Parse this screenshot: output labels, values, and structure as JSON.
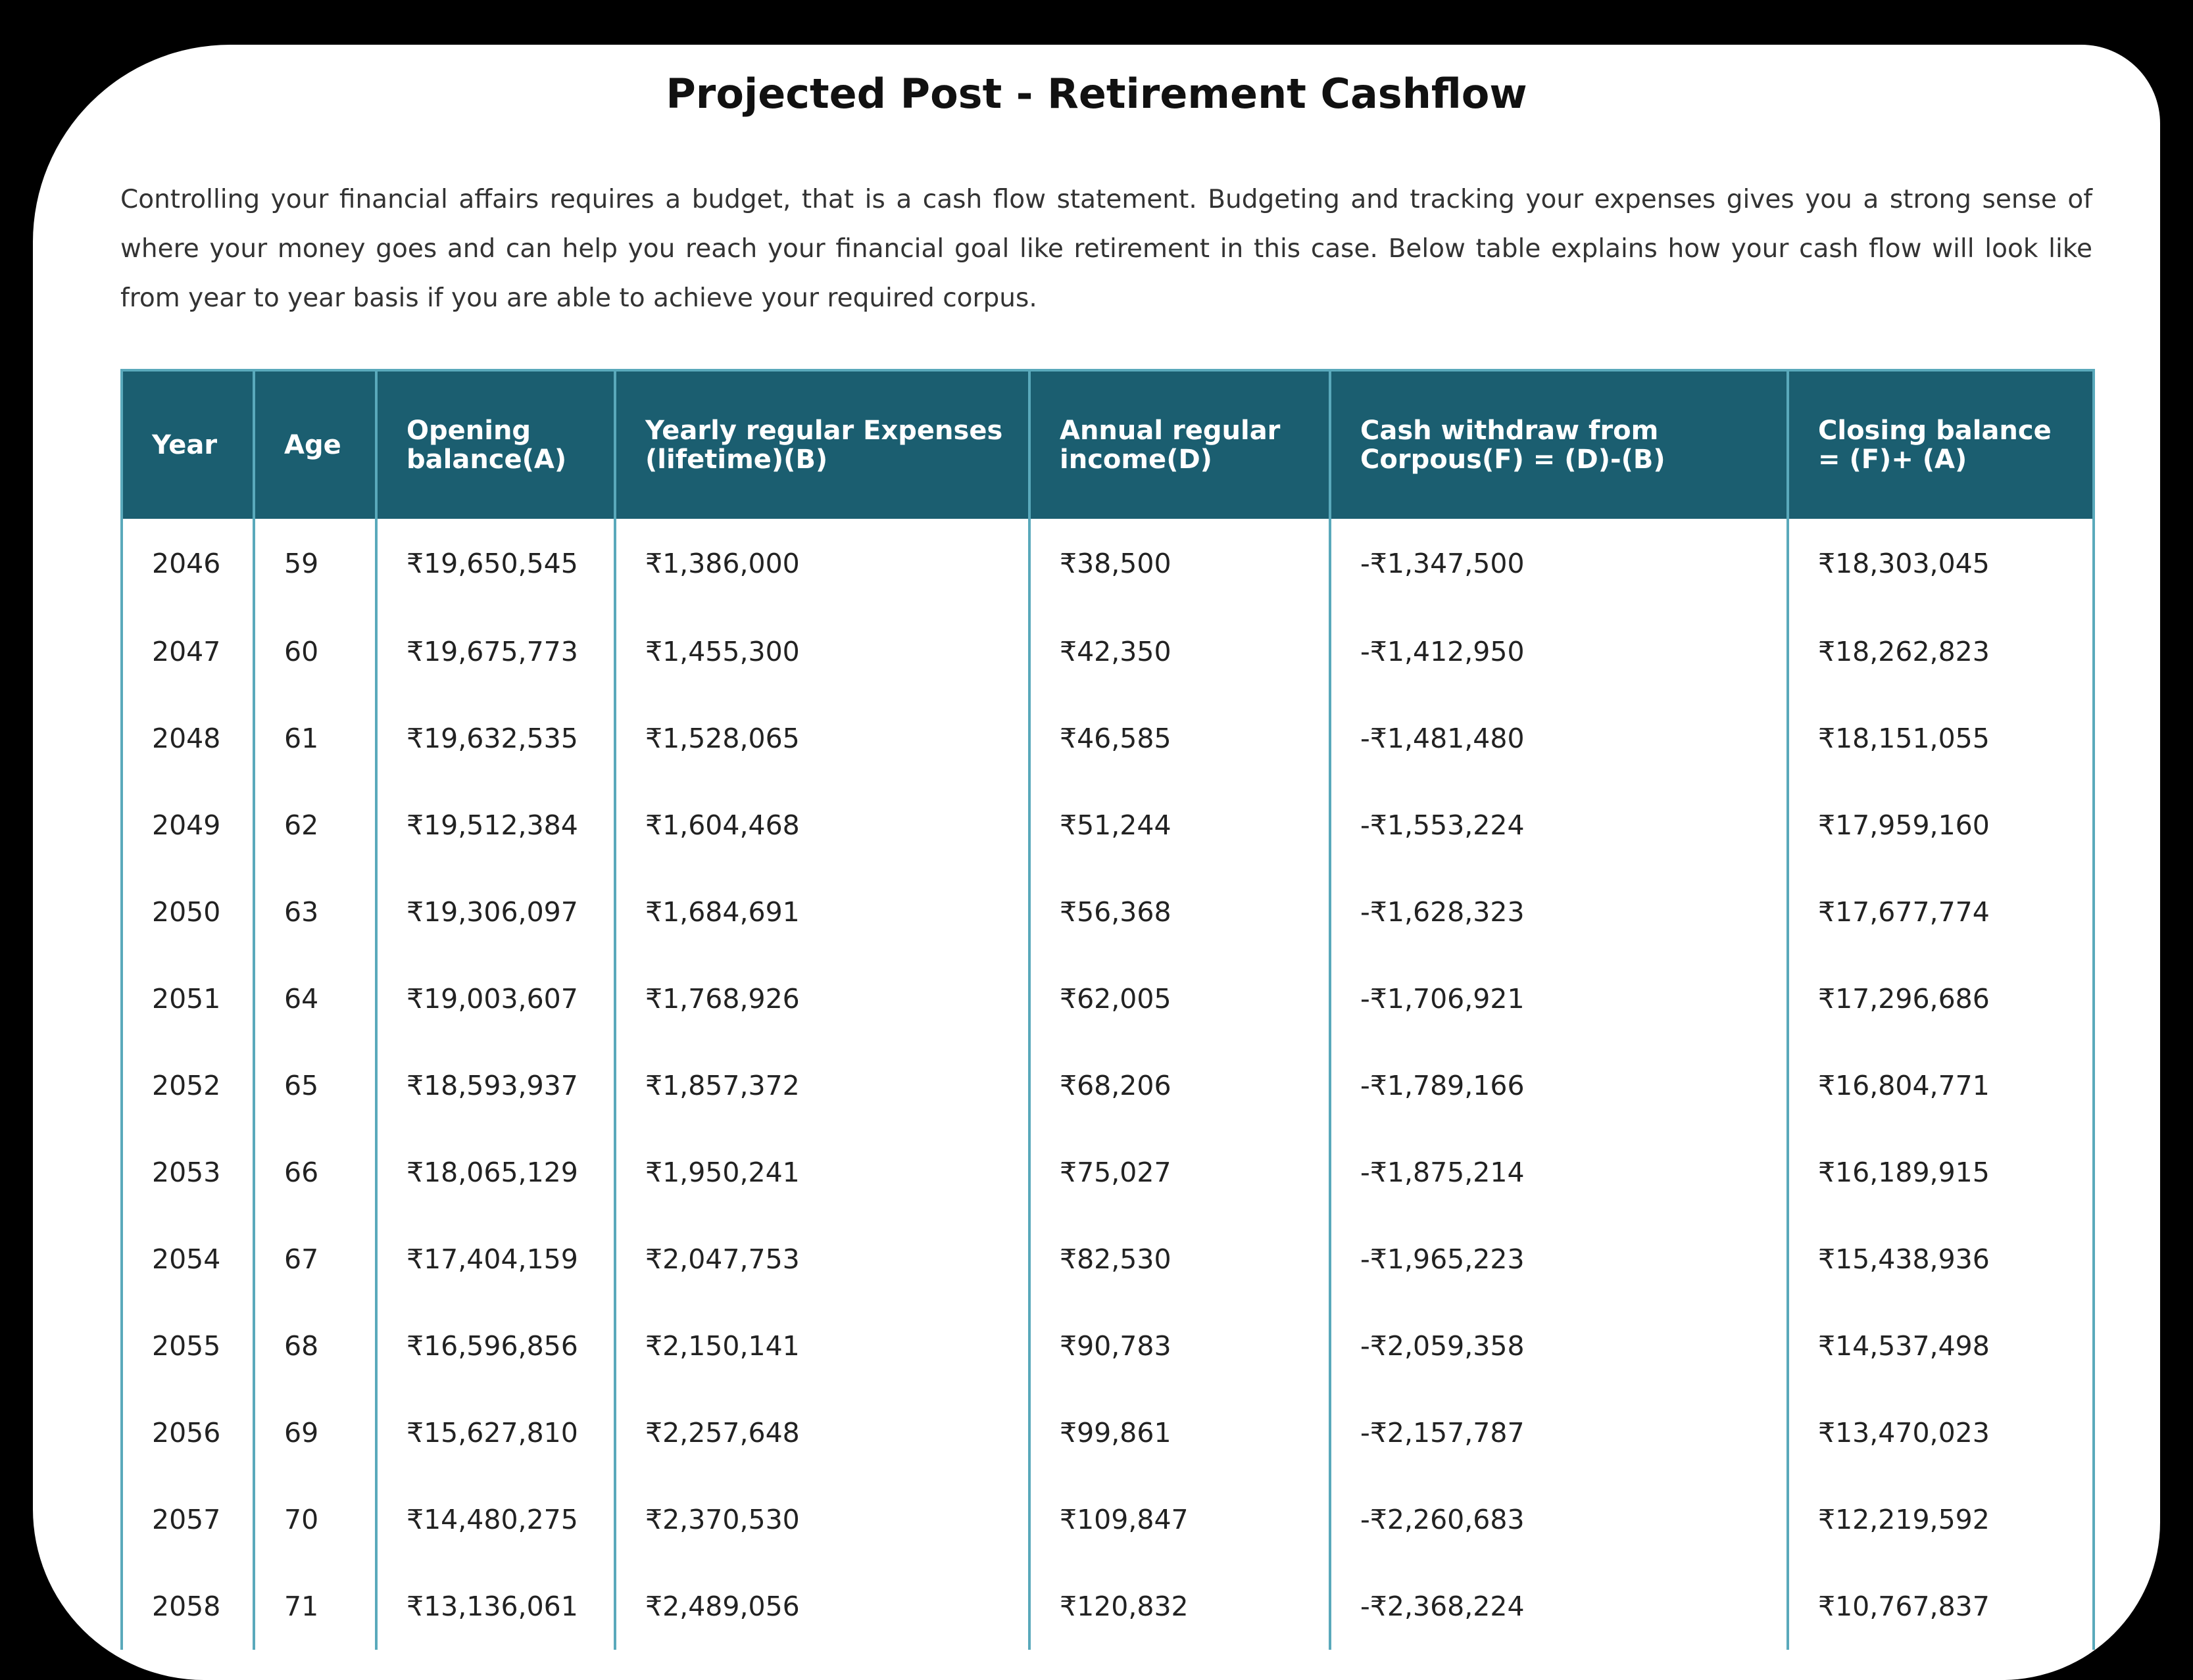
{
  "page": {
    "title": "Projected Post - Retirement Cashflow",
    "intro": "Controlling your financial affairs requires a budget, that is a cash flow statement. Budgeting and tracking your expenses gives you a strong sense of where your money goes and can help you reach your financial goal like retirement in this case. Below table explains how your cash flow will look like from year to year basis if you are able to achieve your required corpus."
  },
  "colors": {
    "header_bg": "#1b5e70",
    "border": "#5aa9bb",
    "page_bg": "#000000",
    "card_bg": "#ffffff"
  },
  "table": {
    "headers": [
      "Year",
      "Age",
      "Opening balance(A)",
      "Yearly regular Expenses (lifetime)(B)",
      "Annual regular income(D)",
      "Cash withdraw from Corpous(F) = (D)-(B)",
      "Closing balance = (F)+ (A)"
    ],
    "rows": [
      [
        "2046",
        "59",
        "₹19,650,545",
        "₹1,386,000",
        "₹38,500",
        "-₹1,347,500",
        "₹18,303,045"
      ],
      [
        "2047",
        "60",
        "₹19,675,773",
        "₹1,455,300",
        "₹42,350",
        "-₹1,412,950",
        "₹18,262,823"
      ],
      [
        "2048",
        "61",
        "₹19,632,535",
        "₹1,528,065",
        "₹46,585",
        "-₹1,481,480",
        "₹18,151,055"
      ],
      [
        "2049",
        "62",
        "₹19,512,384",
        "₹1,604,468",
        "₹51,244",
        "-₹1,553,224",
        "₹17,959,160"
      ],
      [
        "2050",
        "63",
        "₹19,306,097",
        "₹1,684,691",
        "₹56,368",
        "-₹1,628,323",
        "₹17,677,774"
      ],
      [
        "2051",
        "64",
        "₹19,003,607",
        "₹1,768,926",
        "₹62,005",
        "-₹1,706,921",
        "₹17,296,686"
      ],
      [
        "2052",
        "65",
        "₹18,593,937",
        "₹1,857,372",
        "₹68,206",
        "-₹1,789,166",
        "₹16,804,771"
      ],
      [
        "2053",
        "66",
        "₹18,065,129",
        "₹1,950,241",
        "₹75,027",
        "-₹1,875,214",
        "₹16,189,915"
      ],
      [
        "2054",
        "67",
        "₹17,404,159",
        "₹2,047,753",
        "₹82,530",
        "-₹1,965,223",
        "₹15,438,936"
      ],
      [
        "2055",
        "68",
        "₹16,596,856",
        "₹2,150,141",
        "₹90,783",
        "-₹2,059,358",
        "₹14,537,498"
      ],
      [
        "2056",
        "69",
        "₹15,627,810",
        "₹2,257,648",
        "₹99,861",
        "-₹2,157,787",
        "₹13,470,023"
      ],
      [
        "2057",
        "70",
        "₹14,480,275",
        "₹2,370,530",
        "₹109,847",
        "-₹2,260,683",
        "₹12,219,592"
      ],
      [
        "2058",
        "71",
        "₹13,136,061",
        "₹2,489,056",
        "₹120,832",
        "-₹2,368,224",
        "₹10,767,837"
      ]
    ]
  }
}
